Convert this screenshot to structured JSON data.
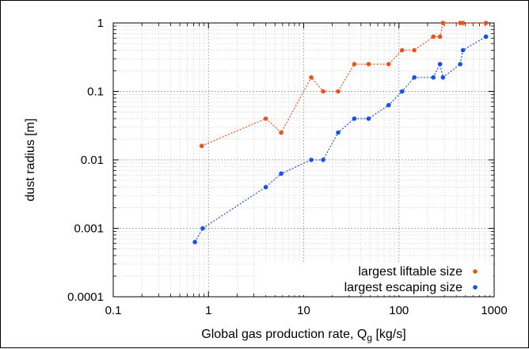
{
  "chart_data": {
    "type": "line",
    "title": "",
    "xlabel": "Global gas production rate, Q",
    "xlabel_subscript": "g",
    "xlabel_unit": "[kg/s]",
    "ylabel": "dust radius [m]",
    "x_scale": "log",
    "y_scale": "log",
    "xlim": [
      0.1,
      1000
    ],
    "ylim": [
      0.0001,
      1
    ],
    "x_ticks": [
      0.1,
      1,
      10,
      100,
      1000
    ],
    "x_tick_labels": [
      "0.1",
      "1",
      "10",
      "100",
      "1000"
    ],
    "y_ticks": [
      0.0001,
      0.001,
      0.01,
      0.1,
      1
    ],
    "y_tick_labels": [
      "0.0001",
      "0.001",
      "0.01",
      "0.1",
      "1"
    ],
    "grid": true,
    "legend_position": "bottom-right",
    "series": [
      {
        "name": "largest liftable size",
        "color": "#e8541c",
        "x": [
          0.85,
          4,
          5.8,
          12,
          16,
          23,
          34,
          48,
          78,
          108,
          145,
          230,
          270,
          290,
          440,
          470,
          820
        ],
        "y": [
          0.016,
          0.04,
          0.025,
          0.16,
          0.1,
          0.1,
          0.25,
          0.25,
          0.25,
          0.4,
          0.4,
          0.63,
          0.63,
          1,
          1,
          1,
          1
        ]
      },
      {
        "name": "largest escaping size",
        "color": "#1a52e0",
        "x": [
          0.72,
          0.87,
          4,
          5.8,
          12,
          16,
          23,
          34,
          48,
          78,
          108,
          145,
          230,
          270,
          290,
          440,
          470,
          820
        ],
        "y": [
          0.00063,
          0.001,
          0.004,
          0.0063,
          0.01,
          0.01,
          0.025,
          0.04,
          0.04,
          0.063,
          0.1,
          0.16,
          0.16,
          0.25,
          0.16,
          0.25,
          0.4,
          0.63
        ]
      }
    ]
  }
}
